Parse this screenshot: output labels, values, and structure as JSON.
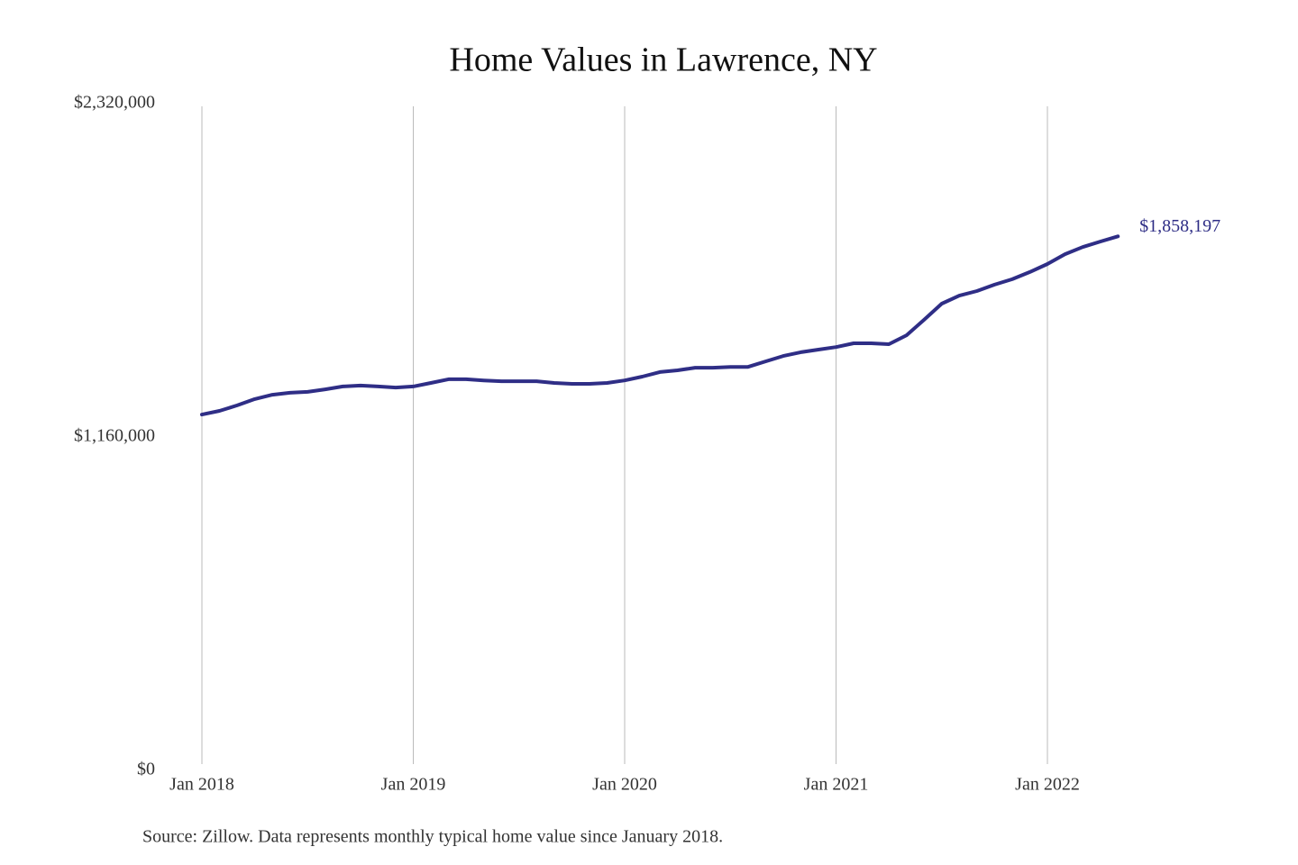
{
  "chart_data": {
    "type": "line",
    "title": "Home Values in Lawrence, NY",
    "source": "Source: Zillow. Data represents monthly typical home value since January 2018.",
    "x": [
      "2018-01",
      "2018-02",
      "2018-03",
      "2018-04",
      "2018-05",
      "2018-06",
      "2018-07",
      "2018-08",
      "2018-09",
      "2018-10",
      "2018-11",
      "2018-12",
      "2019-01",
      "2019-02",
      "2019-03",
      "2019-04",
      "2019-05",
      "2019-06",
      "2019-07",
      "2019-08",
      "2019-09",
      "2019-10",
      "2019-11",
      "2019-12",
      "2020-01",
      "2020-02",
      "2020-03",
      "2020-04",
      "2020-05",
      "2020-06",
      "2020-07",
      "2020-08",
      "2020-09",
      "2020-10",
      "2020-11",
      "2020-12",
      "2021-01",
      "2021-02",
      "2021-03",
      "2021-04",
      "2021-05",
      "2021-06",
      "2021-07",
      "2021-08",
      "2021-09",
      "2021-10",
      "2021-11",
      "2021-12",
      "2022-01",
      "2022-02",
      "2022-03",
      "2022-04",
      "2022-05"
    ],
    "series": [
      {
        "name": "Lawrence, NY",
        "color": "#2f2e86",
        "values": [
          1238000,
          1251000,
          1270000,
          1292000,
          1307000,
          1314000,
          1317000,
          1326000,
          1336000,
          1339000,
          1336000,
          1332000,
          1336000,
          1348000,
          1361000,
          1361000,
          1357000,
          1354000,
          1354000,
          1354000,
          1348000,
          1345000,
          1345000,
          1348000,
          1357000,
          1370000,
          1386000,
          1392000,
          1401000,
          1401000,
          1404000,
          1404000,
          1423000,
          1442000,
          1455000,
          1464000,
          1473000,
          1486000,
          1486000,
          1483000,
          1514000,
          1568000,
          1624000,
          1652000,
          1668000,
          1690000,
          1709000,
          1734000,
          1762000,
          1796000,
          1821000,
          1840000,
          1858197
        ],
        "end_label": {
          "index": 52,
          "label": "$1,858,197"
        }
      }
    ],
    "ylim": [
      0,
      2320000
    ],
    "yticks": [
      {
        "value": 0,
        "label": "$0"
      },
      {
        "value": 1160000,
        "label": "$1,160,000"
      },
      {
        "value": 2320000,
        "label": "$2,320,000"
      }
    ],
    "xticks": [
      {
        "value": "2018-01",
        "label": "Jan 2018"
      },
      {
        "value": "2019-01",
        "label": "Jan 2019"
      },
      {
        "value": "2020-01",
        "label": "Jan 2020"
      },
      {
        "value": "2021-01",
        "label": "Jan 2021"
      },
      {
        "value": "2022-01",
        "label": "Jan 2022"
      }
    ],
    "grid": "x"
  }
}
